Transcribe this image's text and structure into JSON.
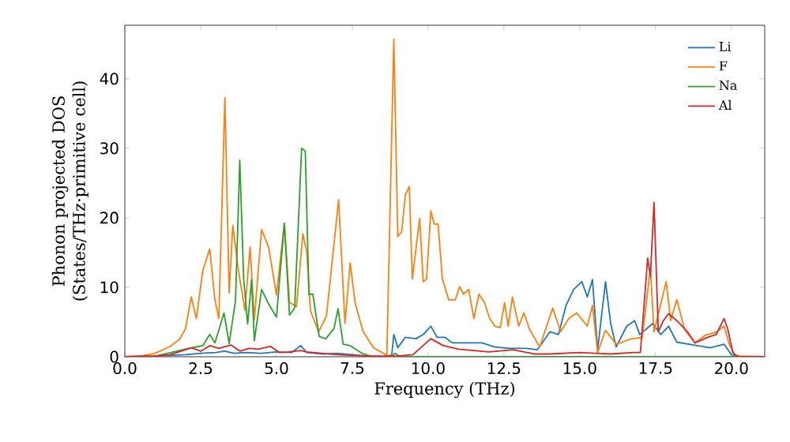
{
  "chart_data": {
    "type": "line",
    "xlabel": "Frequency (THz)",
    "ylabel": "Phonon projected DOS (States/THz·primitive cell)",
    "xlim": [
      0,
      21.1
    ],
    "ylim": [
      0,
      47.7
    ],
    "xticks": [
      {
        "value": 0,
        "label": "0.0"
      },
      {
        "value": 2.5,
        "label": "2.5"
      },
      {
        "value": 5,
        "label": "5.0"
      },
      {
        "value": 7.5,
        "label": "7.5"
      },
      {
        "value": 10,
        "label": "10.0"
      },
      {
        "value": 12.5,
        "label": "12.5"
      },
      {
        "value": 15,
        "label": "15.0"
      },
      {
        "value": 17.5,
        "label": "17.5"
      },
      {
        "value": 20,
        "label": "20.0"
      }
    ],
    "yticks": [
      0,
      10,
      20,
      30,
      40
    ],
    "grid": false,
    "legend": "top right",
    "marker": "none",
    "line_style": "solid",
    "series": [
      {
        "name": "Li",
        "color": "#1f77b4",
        "x": [
          0,
          1,
          2,
          2.5,
          3,
          3.3,
          3.6,
          4,
          4.5,
          5,
          5.5,
          5.8,
          6,
          6.5,
          7,
          7.5,
          8,
          8.5,
          8.8,
          8.87,
          9.0,
          9.25,
          9.6,
          9.84,
          10.09,
          10.3,
          10.55,
          10.8,
          11.34,
          11.77,
          12.2,
          12.7,
          13.25,
          13.6,
          14.02,
          14.3,
          14.55,
          14.8,
          15.07,
          15.25,
          15.42,
          15.59,
          15.85,
          16.02,
          16.2,
          16.55,
          16.81,
          16.98,
          17.41,
          17.67,
          17.93,
          18.2,
          18.6,
          19.3,
          19.76,
          20.0,
          20.3,
          21.1
        ],
        "values": [
          0,
          0.1,
          0.3,
          0.5,
          0.6,
          0.8,
          0.5,
          0.6,
          0.5,
          0.7,
          0.6,
          1.6,
          0.6,
          0.4,
          0.5,
          0.3,
          0.1,
          0,
          0.2,
          3.2,
          1.3,
          2.8,
          2.6,
          3.2,
          4.4,
          2.8,
          2.8,
          2.0,
          2.0,
          2.0,
          1.4,
          1.2,
          1.2,
          1.0,
          3.6,
          3.2,
          7.4,
          9.7,
          10.8,
          8.6,
          11.1,
          1.0,
          10.8,
          4.8,
          1.4,
          4.4,
          5.2,
          3.2,
          4.8,
          3.2,
          4.4,
          2.1,
          1.8,
          1.3,
          1.8,
          0.3,
          0,
          0
        ]
      },
      {
        "name": "F",
        "color": "#ff7f0e",
        "x": [
          0,
          0.5,
          1.0,
          1.5,
          1.8,
          2.0,
          2.19,
          2.36,
          2.57,
          2.8,
          2.97,
          3.1,
          3.3,
          3.44,
          3.56,
          3.75,
          3.96,
          4.13,
          4.27,
          4.51,
          4.74,
          5.0,
          5.26,
          5.43,
          5.66,
          5.87,
          6.0,
          6.12,
          6.39,
          6.65,
          7.05,
          7.26,
          7.43,
          7.6,
          7.86,
          8.2,
          8.64,
          8.87,
          9.0,
          9.13,
          9.25,
          9.38,
          9.48,
          9.72,
          9.84,
          9.95,
          10.09,
          10.2,
          10.33,
          10.47,
          10.68,
          10.9,
          11.04,
          11.17,
          11.34,
          11.51,
          11.68,
          11.86,
          12.03,
          12.2,
          12.38,
          12.52,
          12.64,
          12.78,
          12.99,
          13.16,
          13.34,
          13.68,
          13.94,
          14.11,
          14.37,
          14.64,
          14.9,
          15.25,
          15.42,
          15.59,
          15.85,
          16.2,
          16.63,
          17.06,
          17.33,
          17.45,
          17.85,
          18.0,
          18.2,
          18.46,
          18.8,
          19.14,
          19.48,
          19.76,
          19.93,
          20.1,
          20.28,
          21.1
        ],
        "values": [
          0,
          0.1,
          0.5,
          1.5,
          2.5,
          4,
          8.6,
          5.5,
          12.4,
          15.5,
          8.2,
          5.5,
          37.3,
          9.2,
          18.9,
          12.3,
          6.7,
          15.8,
          5.3,
          18.3,
          15.8,
          8.9,
          19.2,
          7.8,
          7.2,
          17.7,
          15,
          6.6,
          3.6,
          5.9,
          22.6,
          4.8,
          13.5,
          7.6,
          3.6,
          1.3,
          0.2,
          45.7,
          17.3,
          18,
          23.3,
          24.5,
          11.2,
          19.9,
          10.8,
          11.2,
          21,
          19.1,
          19.1,
          11.2,
          8.2,
          8.2,
          10.1,
          9,
          9.7,
          5.5,
          9,
          7.8,
          5.5,
          4.4,
          4.2,
          7.8,
          4.4,
          8.6,
          4.4,
          6.3,
          4,
          1.4,
          4.8,
          7,
          3.6,
          5.5,
          6.3,
          4.4,
          7.4,
          0.6,
          3.8,
          1.8,
          2.5,
          2.8,
          12.7,
          3.6,
          10.8,
          5.2,
          8.2,
          3.9,
          2,
          3.1,
          3.5,
          4.4,
          1.8,
          0.3,
          0.1,
          0
        ]
      },
      {
        "name": "Na",
        "color": "#2ca02c",
        "x": [
          0,
          1.0,
          1.53,
          2.1,
          2.57,
          2.8,
          2.97,
          3.27,
          3.44,
          3.65,
          3.79,
          3.92,
          4.05,
          4.18,
          4.27,
          4.51,
          4.74,
          5.0,
          5.26,
          5.43,
          5.6,
          5.83,
          5.95,
          6.07,
          6.2,
          6.41,
          6.63,
          6.9,
          7.03,
          7.2,
          7.43,
          7.86,
          8.2,
          8.8,
          8.9,
          9.1,
          10,
          21.1
        ],
        "values": [
          0,
          0.1,
          0.6,
          1.2,
          1.6,
          3.2,
          2,
          6.3,
          1.9,
          8.1,
          28.3,
          11.1,
          4.7,
          11.1,
          2.3,
          9.7,
          7.6,
          5.7,
          19.2,
          6,
          7,
          30,
          29.6,
          9,
          9,
          2.9,
          2.6,
          4.1,
          6.9,
          1.8,
          1.6,
          0.4,
          0,
          0,
          0.5,
          0,
          0,
          0
        ]
      },
      {
        "name": "Al",
        "color": "#d62728",
        "x": [
          0,
          1.0,
          1.5,
          2.2,
          2.5,
          2.8,
          3.1,
          3.5,
          3.8,
          4.1,
          4.4,
          4.8,
          5.1,
          5.4,
          5.8,
          6.0,
          7.0,
          8.0,
          9.0,
          9.5,
          10.09,
          10.5,
          11.0,
          12.0,
          12.8,
          13.5,
          14.0,
          15.0,
          16.0,
          16.8,
          17.0,
          17.24,
          17.33,
          17.45,
          17.59,
          17.76,
          17.93,
          18.2,
          18.55,
          18.8,
          19.22,
          19.5,
          19.76,
          19.88,
          20.05,
          20.2,
          21.1
        ],
        "values": [
          0,
          0.1,
          0.3,
          1.3,
          0.8,
          1.6,
          1.2,
          1.7,
          0.8,
          1.2,
          1.1,
          1.5,
          0.6,
          0.7,
          0.9,
          0.7,
          0.3,
          0.1,
          0.1,
          0.3,
          2.6,
          1.6,
          1.1,
          0.7,
          1.0,
          0.4,
          0.4,
          0.6,
          0.4,
          0.6,
          0.6,
          14.2,
          11.6,
          22.2,
          3.6,
          5.2,
          6.2,
          5.2,
          3.6,
          2,
          2.8,
          3.2,
          5.5,
          4,
          0.6,
          0,
          0
        ]
      }
    ]
  }
}
